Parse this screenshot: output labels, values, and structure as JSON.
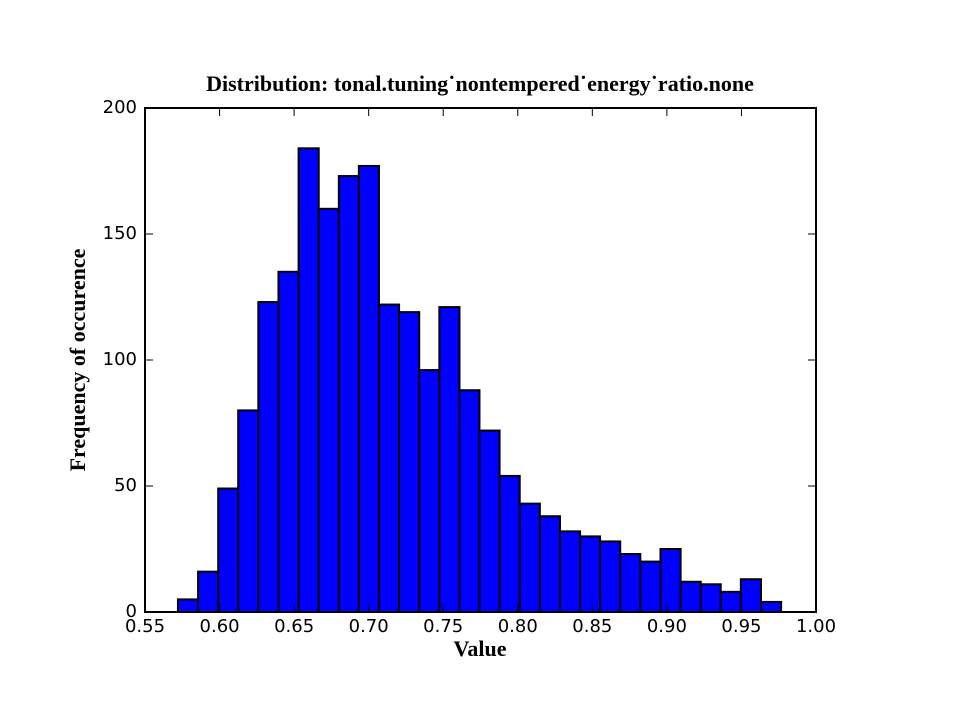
{
  "chart_data": {
    "type": "histogram",
    "title": "Distribution: tonal.tuning˙nontempered˙energy˙ratio.none",
    "x_label": "Value",
    "y_label": "Frequency of occurence",
    "bins": [
      0.5721,
      0.5856,
      0.5991,
      0.6125,
      0.626,
      0.6395,
      0.653,
      0.6665,
      0.68,
      0.6934,
      0.7069,
      0.7204,
      0.7339,
      0.7474,
      0.7609,
      0.7743,
      0.7878,
      0.8013,
      0.8148,
      0.8283,
      0.8418,
      0.8552,
      0.8687,
      0.8822,
      0.8957,
      0.9092,
      0.9227,
      0.9361,
      0.9496,
      0.9631,
      0.9766
    ],
    "values": [
      5,
      16,
      49,
      80,
      123,
      135,
      184,
      160,
      173,
      177,
      122,
      119,
      96,
      121,
      88,
      72,
      54,
      43,
      38,
      32,
      30,
      28,
      23,
      20,
      25,
      12,
      11,
      8,
      13,
      4
    ],
    "color": "#0000ff",
    "xlim": [
      0.55,
      1.0
    ],
    "xticks": [
      {
        "value": 0.55,
        "label": "0.55"
      },
      {
        "value": 0.6,
        "label": "0.60"
      },
      {
        "value": 0.65,
        "label": "0.65"
      },
      {
        "value": 0.7,
        "label": "0.70"
      },
      {
        "value": 0.75,
        "label": "0.75"
      },
      {
        "value": 0.8,
        "label": "0.80"
      },
      {
        "value": 0.85,
        "label": "0.85"
      },
      {
        "value": 0.9,
        "label": "0.90"
      },
      {
        "value": 0.95,
        "label": "0.95"
      },
      {
        "value": 1.0,
        "label": "1.00"
      }
    ],
    "ylim": [
      0,
      200
    ],
    "yticks": [
      0,
      50,
      100,
      150,
      200
    ],
    "grid": false
  }
}
